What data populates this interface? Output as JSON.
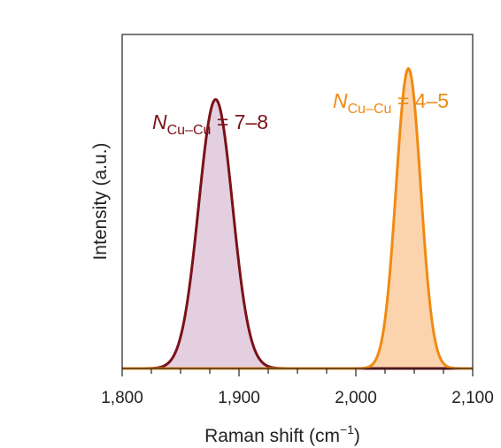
{
  "chart_data": {
    "type": "area",
    "xlabel": "Raman shift (cm",
    "xlabel_sup": "−1",
    "xlabel_end": ")",
    "ylabel": "Intensity (a.u.)",
    "xlim": [
      1800,
      2100
    ],
    "ylim": [
      0,
      1.08
    ],
    "xticks": [
      1800,
      1900,
      2000,
      2100
    ],
    "xtick_labels": [
      "1,800",
      "1,900",
      "2,000",
      "2,100"
    ],
    "minor_tick_step": 25,
    "grid": false,
    "series": [
      {
        "center": 1880,
        "sigma": 14.5,
        "peak": 0.87,
        "line_color": "#7a1218",
        "fill_color": "#e3cfe0",
        "annotation": {
          "italic": "N",
          "sub": "Cu–Cu",
          "rest": " = 7–8"
        }
      },
      {
        "center": 2045,
        "sigma": 10.5,
        "peak": 0.97,
        "line_color": "#f08a12",
        "fill_color": "#fbd4ad",
        "annotation": {
          "italic": "N",
          "sub": "Cu–Cu",
          "rest": " = 4–5"
        }
      }
    ]
  }
}
